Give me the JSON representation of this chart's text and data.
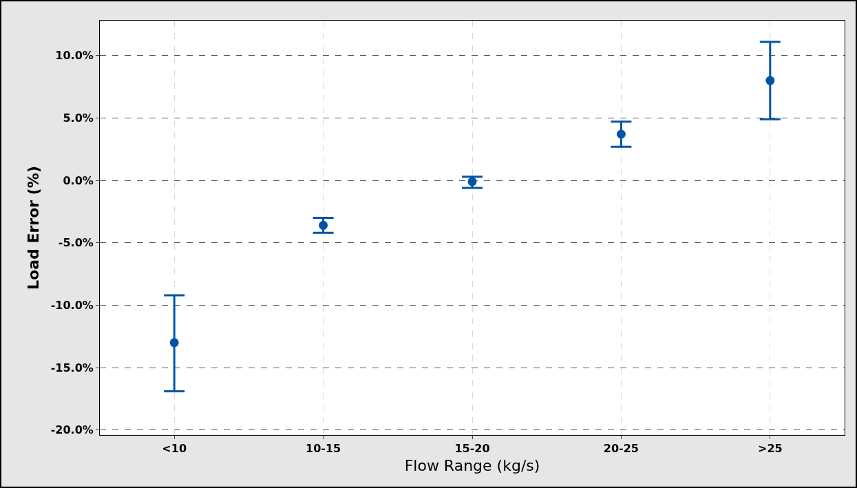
{
  "chart_data": {
    "type": "scatter",
    "xlabel": "Flow Range (kg/s)",
    "ylabel": "Load Error (%)",
    "categories": [
      "<10",
      "10-15",
      "15-20",
      "20-25",
      ">25"
    ],
    "values": [
      -13.0,
      -3.6,
      -0.1,
      3.7,
      8.0
    ],
    "errors": [
      [
        -16.9,
        -9.2
      ],
      [
        -4.2,
        -3.0
      ],
      [
        -0.6,
        0.3
      ],
      [
        2.7,
        4.7
      ],
      [
        4.9,
        11.1
      ]
    ],
    "color": "#0054a6",
    "marker": "circle",
    "grid": true,
    "ylim": [
      -20.4,
      12.8
    ],
    "yticks": [
      {
        "value": -20,
        "label": "-20.0%"
      },
      {
        "value": -15,
        "label": "-15.0%"
      },
      {
        "value": -10,
        "label": "-10.0%"
      },
      {
        "value": -5,
        "label": "-5.0%"
      },
      {
        "value": 0,
        "label": "0.0%"
      },
      {
        "value": 5,
        "label": "5.0%"
      },
      {
        "value": 10,
        "label": "10.0%"
      }
    ]
  }
}
